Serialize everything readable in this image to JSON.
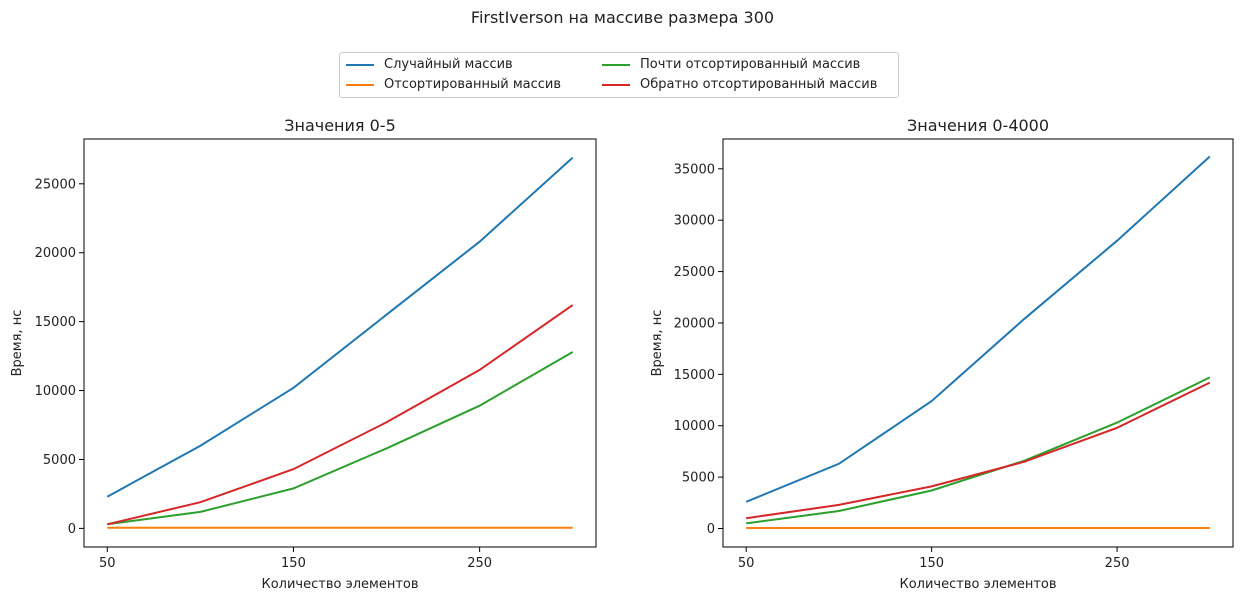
{
  "figure": {
    "suptitle": "FirstIverson на массиве размера 300"
  },
  "legend": {
    "entries": [
      {
        "label": "Случайный массив",
        "color": "#1f77b4"
      },
      {
        "label": "Отсортированный массив",
        "color": "#ff7f0e"
      },
      {
        "label": "Почти отсортированный массив",
        "color": "#2ca02c"
      },
      {
        "label": "Обратно отсортированный массив",
        "color": "#d62728"
      }
    ]
  },
  "chart_data": [
    {
      "type": "line",
      "title": "Значения 0-5",
      "xlabel": "Количество элементов",
      "ylabel": "Время, нс",
      "xlim": [
        37.5,
        312.5
      ],
      "ylim": [
        -1350,
        28250
      ],
      "xticks": [
        50,
        150,
        250
      ],
      "yticks": [
        0,
        5000,
        10000,
        15000,
        20000,
        25000
      ],
      "x": [
        50,
        100,
        150,
        200,
        250,
        300
      ],
      "series": [
        {
          "name": "Случайный массив",
          "color": "#1f77b4",
          "values": [
            2300,
            6000,
            10200,
            15500,
            20800,
            26900
          ]
        },
        {
          "name": "Отсортированный массив",
          "color": "#ff7f0e",
          "values": [
            50,
            50,
            50,
            50,
            50,
            50
          ]
        },
        {
          "name": "Почти отсортированный массив",
          "color": "#2ca02c",
          "values": [
            300,
            1200,
            2900,
            5800,
            8900,
            12800
          ]
        },
        {
          "name": "Обратно отсортированный массив",
          "color": "#d62728",
          "values": [
            300,
            1900,
            4300,
            7700,
            11500,
            16200
          ]
        }
      ]
    },
    {
      "type": "line",
      "title": "Значения 0-4000",
      "xlabel": "Количество элементов",
      "ylabel": "Время, нс",
      "xlim": [
        37.5,
        312.5
      ],
      "ylim": [
        -1800,
        37900
      ],
      "xticks": [
        50,
        150,
        250
      ],
      "yticks": [
        0,
        5000,
        10000,
        15000,
        20000,
        25000,
        30000,
        35000
      ],
      "x": [
        50,
        100,
        150,
        200,
        250,
        300
      ],
      "series": [
        {
          "name": "Случайный массив",
          "color": "#1f77b4",
          "values": [
            2600,
            6300,
            12400,
            20400,
            28000,
            36200
          ]
        },
        {
          "name": "Отсортированный массив",
          "color": "#ff7f0e",
          "values": [
            50,
            50,
            50,
            50,
            50,
            50
          ]
        },
        {
          "name": "Почти отсортированный массив",
          "color": "#2ca02c",
          "values": [
            500,
            1700,
            3700,
            6600,
            10300,
            14700
          ]
        },
        {
          "name": "Обратно отсортированный массив",
          "color": "#d62728",
          "values": [
            1000,
            2300,
            4100,
            6500,
            9800,
            14200
          ]
        }
      ]
    }
  ]
}
